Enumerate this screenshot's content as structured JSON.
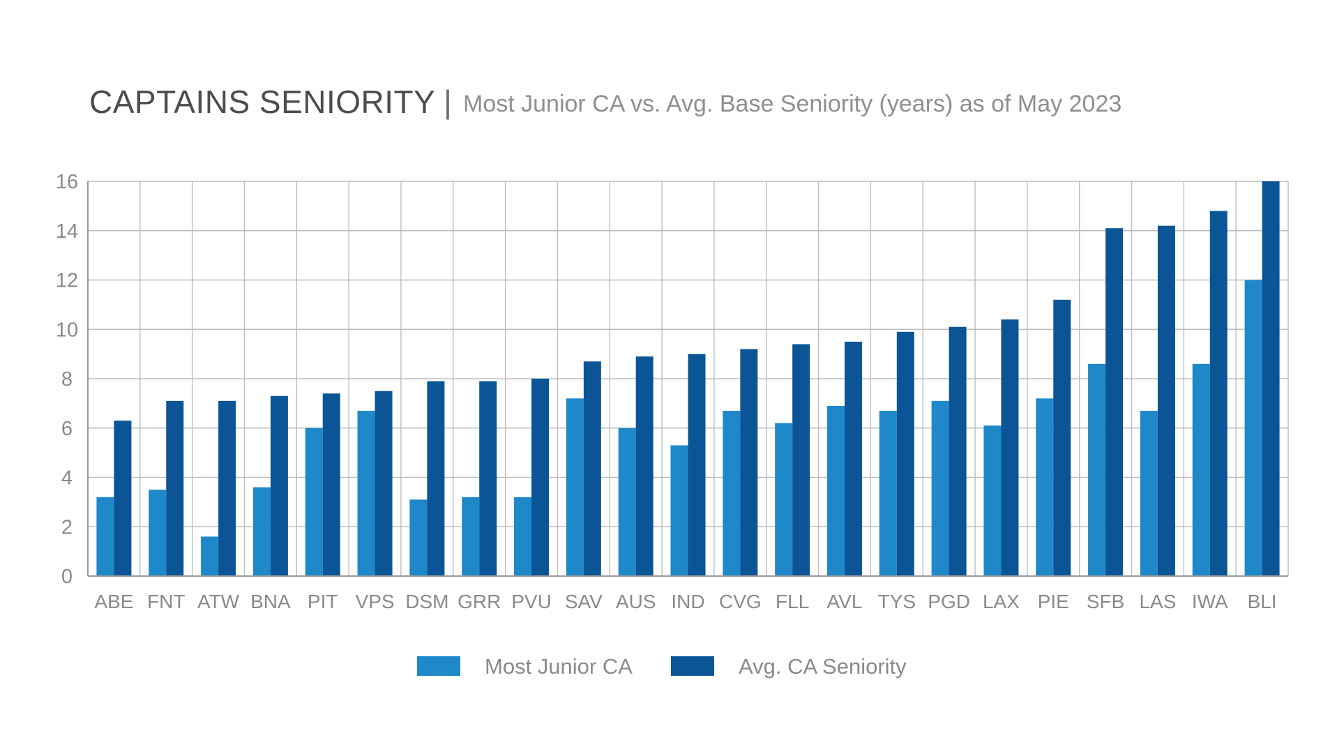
{
  "title": {
    "main": "CAPTAINS SENIORITY",
    "separator": "|",
    "subtitle": "Most Junior CA vs. Avg. Base Seniority (years) as of May 2023"
  },
  "colors": {
    "most_junior": "#1e88c9",
    "avg_seniority": "#0b5596",
    "grid": "#bdbdbd",
    "text": "#8a8a8a"
  },
  "chart_data": {
    "type": "bar",
    "title": "CAPTAINS SENIORITY",
    "subtitle": "Most Junior CA vs. Avg. Base Seniority (years) as of May 2023",
    "xlabel": "",
    "ylabel": "",
    "ylim": [
      0,
      16
    ],
    "yticks": [
      0,
      2,
      4,
      6,
      8,
      10,
      12,
      14,
      16
    ],
    "grid": true,
    "legend_position": "bottom",
    "categories": [
      "ABE",
      "FNT",
      "ATW",
      "BNA",
      "PIT",
      "VPS",
      "DSM",
      "GRR",
      "PVU",
      "SAV",
      "AUS",
      "IND",
      "CVG",
      "FLL",
      "AVL",
      "TYS",
      "PGD",
      "LAX",
      "PIE",
      "SFB",
      "LAS",
      "IWA",
      "BLI"
    ],
    "series": [
      {
        "name": "Most Junior CA",
        "values": [
          3.2,
          3.5,
          1.6,
          3.6,
          6.0,
          6.7,
          3.1,
          3.2,
          3.2,
          7.2,
          6.0,
          5.3,
          6.7,
          6.2,
          6.9,
          6.7,
          7.1,
          6.1,
          7.2,
          8.6,
          6.7,
          8.6,
          12.0
        ]
      },
      {
        "name": "Avg. CA Seniority",
        "values": [
          6.3,
          7.1,
          7.1,
          7.3,
          7.4,
          7.5,
          7.9,
          7.9,
          8.0,
          8.7,
          8.9,
          9.0,
          9.2,
          9.4,
          9.5,
          9.9,
          10.1,
          10.4,
          11.2,
          14.1,
          14.2,
          14.8,
          16.0
        ]
      }
    ]
  }
}
